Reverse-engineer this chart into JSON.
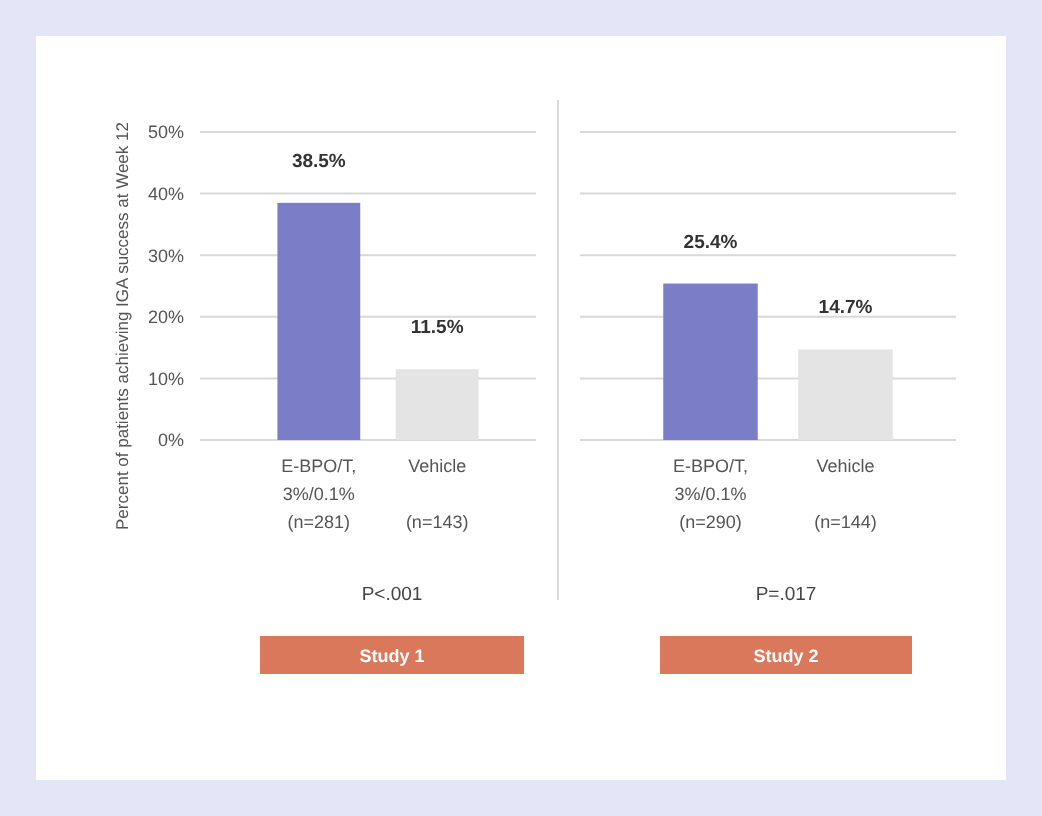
{
  "chart_data": [
    {
      "type": "bar",
      "categories": [
        "E-BPO/T,\n3%/0.1%\n(n=281)",
        "Vehicle\n\n(n=143)"
      ],
      "colors": [
        "#7b7ec6",
        "#e4e4e4"
      ],
      "values": [
        38.5,
        11.5
      ],
      "value_labels": [
        "38.5%",
        "11.5%"
      ],
      "ylim": [
        0,
        50
      ],
      "yticks": [
        {
          "value": 0,
          "label": "0%"
        },
        {
          "value": 10,
          "label": "10%"
        },
        {
          "value": 20,
          "label": "20%"
        },
        {
          "value": 30,
          "label": "30%"
        },
        {
          "value": 40,
          "label": "40%"
        },
        {
          "value": 50,
          "label": "50%"
        }
      ],
      "grid": "y",
      "ylabel": "Percent of patients achieving IGA success at Week 12",
      "xlabel": "Study 1",
      "annotations": [
        "P<.001"
      ]
    },
    {
      "type": "bar",
      "categories": [
        "E-BPO/T,\n3%/0.1%\n(n=290)",
        "Vehicle\n\n(n=144)"
      ],
      "colors": [
        "#7b7ec6",
        "#e4e4e4"
      ],
      "values": [
        25.4,
        14.7
      ],
      "value_labels": [
        "25.4%",
        "14.7%"
      ],
      "ylim": [
        0,
        50
      ],
      "yticks": [
        {
          "value": 0,
          "label": null
        },
        {
          "value": 10,
          "label": null
        },
        {
          "value": 20,
          "label": null
        },
        {
          "value": 30,
          "label": null
        },
        {
          "value": 40,
          "label": null
        },
        {
          "value": 50,
          "label": null
        }
      ],
      "grid": "y",
      "tick_labels": "x",
      "xlabel": "Study 2",
      "annotations": [
        "P=.017"
      ]
    }
  ]
}
